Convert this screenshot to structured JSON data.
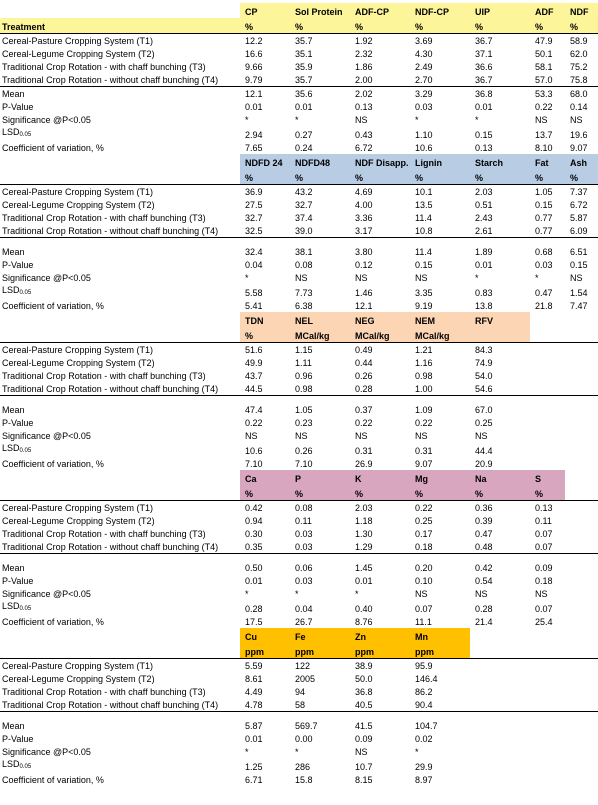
{
  "sections": [
    {
      "columns": [
        "CP",
        "Sol Protein",
        "ADF-CP",
        "NDF-CP",
        "UIP",
        "ADF",
        "NDF"
      ],
      "header_label": "Treatment",
      "units": [
        "%",
        "%",
        "%",
        "%",
        "%",
        "%",
        "%"
      ],
      "color": "#fdf59a",
      "rows": [
        {
          "label": "Cereal-Pasture Cropping System (T1)",
          "values": [
            "12.2",
            "35.7",
            "1.92",
            "3.69",
            "36.7",
            "47.9",
            "58.9"
          ]
        },
        {
          "label": "Cereal-Legume Cropping System (T2)",
          "values": [
            "16.6",
            "35.1",
            "2.32",
            "4.30",
            "37.1",
            "50.1",
            "62.0"
          ]
        },
        {
          "label": "Traditional Crop Rotation - with chaff bunching (T3)",
          "values": [
            "9.66",
            "35.9",
            "1.86",
            "2.49",
            "36.6",
            "58.1",
            "75.2"
          ]
        },
        {
          "label": "Traditional Crop Rotation - without chaff bunching (T4)",
          "values": [
            "9.79",
            "35.7",
            "2.00",
            "2.70",
            "36.7",
            "57.0",
            "75.8"
          ]
        },
        {
          "label": "Mean",
          "values": [
            "12.1",
            "35.6",
            "2.02",
            "3.29",
            "36.8",
            "53.3",
            "68.0"
          ]
        },
        {
          "label": "P-Value",
          "values": [
            "0.01",
            "0.01",
            "0.13",
            "0.03",
            "0.01",
            "0.22",
            "0.14"
          ]
        },
        {
          "label": "Significance @P<0.05",
          "values": [
            "*",
            "*",
            "NS",
            "*",
            "*",
            "NS",
            "NS"
          ]
        },
        {
          "label": "LSD",
          "sub": "0.05",
          "values": [
            "2.94",
            "0.27",
            "0.43",
            "1.10",
            "0.15",
            "13.7",
            "19.6"
          ]
        },
        {
          "label": "Coefficient of variation, %",
          "values": [
            "7.65",
            "0.24",
            "6.72",
            "10.6",
            "0.13",
            "8.10",
            "9.07"
          ]
        }
      ]
    },
    {
      "columns": [
        "NDFD 24",
        "NDFD48",
        "NDF Disapp.",
        "Lignin",
        "Starch",
        "Fat",
        "Ash"
      ],
      "units": [
        "%",
        "%",
        "%",
        "%",
        "%",
        "%",
        "%"
      ],
      "color": "#b8cce4",
      "rows": [
        {
          "label": "Cereal-Pasture Cropping System (T1)",
          "values": [
            "36.9",
            "43.2",
            "4.69",
            "10.1",
            "2.03",
            "1.05",
            "7.37"
          ]
        },
        {
          "label": "Cereal-Legume Cropping System (T2)",
          "values": [
            "27.5",
            "32.7",
            "4.00",
            "13.5",
            "0.51",
            "0.15",
            "6.72"
          ]
        },
        {
          "label": "Traditional Crop Rotation - with chaff bunching (T3)",
          "values": [
            "32.7",
            "37.4",
            "3.36",
            "11.4",
            "2.43",
            "0.77",
            "5.87"
          ]
        },
        {
          "label": "Traditional Crop Rotation - without chaff bunching (T4)",
          "values": [
            "32.5",
            "39.0",
            "3.17",
            "10.8",
            "2.61",
            "0.77",
            "6.09"
          ]
        },
        {
          "label": "Mean",
          "values": [
            "32.4",
            "38.1",
            "3.80",
            "11.4",
            "1.89",
            "0.68",
            "6.51"
          ]
        },
        {
          "label": "P-Value",
          "values": [
            "0.04",
            "0.08",
            "0.12",
            "0.15",
            "0.01",
            "0.03",
            "0.15"
          ]
        },
        {
          "label": "Significance @P<0.05",
          "values": [
            "*",
            "NS",
            "NS",
            "NS",
            "*",
            "*",
            "NS"
          ]
        },
        {
          "label": "LSD",
          "sub": "0.05",
          "values": [
            "5.58",
            "7.73",
            "1.46",
            "3.35",
            "0.83",
            "0.47",
            "1.54"
          ]
        },
        {
          "label": "Coefficient of variation, %",
          "values": [
            "5.41",
            "6.38",
            "12.1",
            "9.19",
            "13.8",
            "21.8",
            "7.47"
          ]
        }
      ]
    },
    {
      "columns": [
        "TDN",
        "NEL",
        "NEG",
        "NEM",
        "RFV"
      ],
      "units": [
        "%",
        "MCal/kg",
        "MCal/kg",
        "MCal/kg"
      ],
      "color": "#fcd5b4",
      "rows": [
        {
          "label": "Cereal-Pasture Cropping System (T1)",
          "values": [
            "51.6",
            "1.15",
            "0.49",
            "1.21",
            "84.3"
          ]
        },
        {
          "label": "Cereal-Legume Cropping System (T2)",
          "values": [
            "49.9",
            "1.11",
            "0.44",
            "1.16",
            "74.9"
          ]
        },
        {
          "label": "Traditional Crop Rotation - with chaff bunching (T3)",
          "values": [
            "43.7",
            "0.96",
            "0.26",
            "0.98",
            "54.0"
          ]
        },
        {
          "label": "Traditional Crop Rotation - without chaff bunching (T4)",
          "values": [
            "44.5",
            "0.98",
            "0.28",
            "1.00",
            "54.6"
          ]
        },
        {
          "label": "Mean",
          "values": [
            "47.4",
            "1.05",
            "0.37",
            "1.09",
            "67.0"
          ]
        },
        {
          "label": "P-Value",
          "values": [
            "0.22",
            "0.23",
            "0.22",
            "0.22",
            "0.25"
          ]
        },
        {
          "label": "Significance @P<0.05",
          "values": [
            "NS",
            "NS",
            "NS",
            "NS",
            "NS"
          ]
        },
        {
          "label": "LSD",
          "sub": "0.05",
          "values": [
            "10.6",
            "0.26",
            "0.31",
            "0.31",
            "44.4"
          ]
        },
        {
          "label": "Coefficient of variation, %",
          "values": [
            "7.10",
            "7.10",
            "26.9",
            "9.07",
            "20.9"
          ]
        }
      ]
    },
    {
      "columns": [
        "Ca",
        "P",
        "K",
        "Mg",
        "Na",
        "S"
      ],
      "units": [
        "%",
        "%",
        "%",
        "%",
        "%",
        "%"
      ],
      "color": "#d8a7bf",
      "rows": [
        {
          "label": "Cereal-Pasture Cropping System (T1)",
          "values": [
            "0.42",
            "0.08",
            "2.03",
            "0.22",
            "0.36",
            "0.13"
          ]
        },
        {
          "label": "Cereal-Legume Cropping System (T2)",
          "values": [
            "0.94",
            "0.11",
            "1.18",
            "0.25",
            "0.39",
            "0.11"
          ]
        },
        {
          "label": "Traditional Crop Rotation - with chaff bunching (T3)",
          "values": [
            "0.30",
            "0.03",
            "1.30",
            "0.17",
            "0.47",
            "0.07"
          ]
        },
        {
          "label": "Traditional Crop Rotation - without chaff bunching (T4)",
          "values": [
            "0.35",
            "0.03",
            "1.29",
            "0.18",
            "0.48",
            "0.07"
          ]
        },
        {
          "label": "Mean",
          "values": [
            "0.50",
            "0.06",
            "1.45",
            "0.20",
            "0.42",
            "0.09"
          ]
        },
        {
          "label": "P-Value",
          "values": [
            "0.01",
            "0.03",
            "0.01",
            "0.10",
            "0.54",
            "0.18"
          ]
        },
        {
          "label": "Significance @P<0.05",
          "values": [
            "*",
            "*",
            "*",
            "NS",
            "NS",
            "NS"
          ]
        },
        {
          "label": "LSD",
          "sub": "0.05",
          "values": [
            "0.28",
            "0.04",
            "0.40",
            "0.07",
            "0.28",
            "0.07"
          ]
        },
        {
          "label": "Coefficient of variation, %",
          "values": [
            "17.5",
            "26.7",
            "8.76",
            "11.1",
            "21.4",
            "25.4"
          ]
        }
      ]
    },
    {
      "columns": [
        "Cu",
        "Fe",
        "Zn",
        "Mn"
      ],
      "units": [
        "ppm",
        "ppm",
        "ppm",
        "ppm"
      ],
      "color": "#ffc000",
      "rows": [
        {
          "label": "Cereal-Pasture Cropping System (T1)",
          "values": [
            "5.59",
            "122",
            "38.9",
            "95.9"
          ]
        },
        {
          "label": "Cereal-Legume Cropping System (T2)",
          "values": [
            "8.61",
            "2005",
            "50.0",
            "146.4"
          ]
        },
        {
          "label": "Traditional Crop Rotation - with chaff bunching (T3)",
          "values": [
            "4.49",
            "94",
            "36.8",
            "86.2"
          ]
        },
        {
          "label": "Traditional Crop Rotation - without chaff bunching (T4)",
          "values": [
            "4.78",
            "58",
            "40.5",
            "90.4"
          ]
        },
        {
          "label": "Mean",
          "values": [
            "5.87",
            "569.7",
            "41.5",
            "104.7"
          ]
        },
        {
          "label": "P-Value",
          "values": [
            "0.01",
            "0.00",
            "0.09",
            "0.02"
          ]
        },
        {
          "label": "Significance @P<0.05",
          "values": [
            "*",
            "*",
            "NS",
            "*"
          ]
        },
        {
          "label": "LSD",
          "sub": "0.05",
          "values": [
            "1.25",
            "286",
            "10.7",
            "29.9"
          ]
        },
        {
          "label": "Coefficient of variation, %",
          "values": [
            "6.71",
            "15.8",
            "8.15",
            "8.97"
          ]
        }
      ]
    }
  ]
}
